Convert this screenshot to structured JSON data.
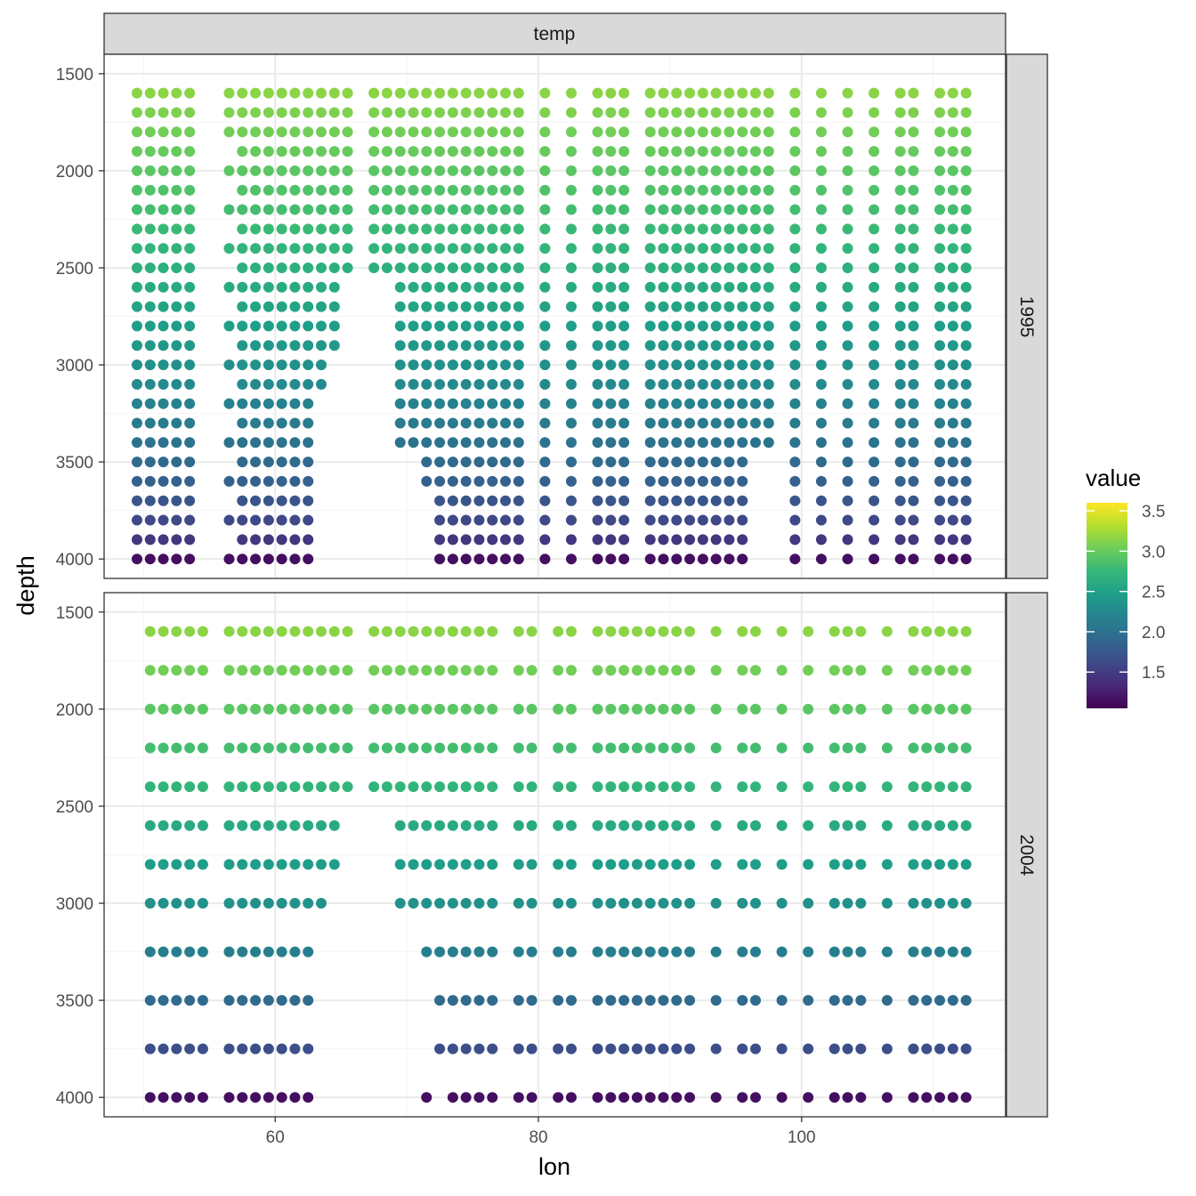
{
  "chart_data": {
    "type": "scatter",
    "facet_top_label": "temp",
    "facets": [
      {
        "label": "1995",
        "lons": [
          49.5,
          50.5,
          51.5,
          52.5,
          53.5,
          56.5,
          57.5,
          58.5,
          59.5,
          60.5,
          61.5,
          62.5,
          63.5,
          64.5,
          65.5,
          67.5,
          68.5,
          69.5,
          70.5,
          71.5,
          72.5,
          73.5,
          74.5,
          75.5,
          76.5,
          77.5,
          78.5,
          80.5,
          82.5,
          84.5,
          85.5,
          86.5,
          88.5,
          89.5,
          90.5,
          91.5,
          92.5,
          93.5,
          94.5,
          95.5,
          96.5,
          97.5,
          99.5,
          101.5,
          103.5,
          105.5,
          107.5,
          108.5,
          110.5,
          111.5,
          112.5
        ],
        "depths": [
          1600,
          1700,
          1800,
          1900,
          2000,
          2100,
          2200,
          2300,
          2400,
          2500,
          2600,
          2700,
          2800,
          2900,
          3000,
          3100,
          3200,
          3300,
          3400,
          3500,
          3600,
          3700,
          3800,
          3900,
          4000
        ],
        "empty_cells": [
          [
            56.5,
            1900
          ],
          [
            56.5,
            2100
          ],
          [
            56.5,
            2300
          ],
          [
            56.5,
            2500
          ],
          [
            56.5,
            2700
          ],
          [
            56.5,
            2900
          ],
          [
            56.5,
            3100
          ],
          [
            56.5,
            3300
          ],
          [
            56.5,
            3500
          ],
          [
            56.5,
            3700
          ],
          [
            56.5,
            3900
          ],
          [
            63.5,
            3200
          ],
          [
            63.5,
            3300
          ],
          [
            63.5,
            3400
          ],
          [
            63.5,
            3500
          ],
          [
            63.5,
            3600
          ],
          [
            63.5,
            3700
          ],
          [
            63.5,
            3800
          ],
          [
            63.5,
            3900
          ],
          [
            63.5,
            4000
          ],
          [
            64.5,
            3000
          ],
          [
            64.5,
            3100
          ],
          [
            64.5,
            3200
          ],
          [
            64.5,
            3300
          ],
          [
            64.5,
            3400
          ],
          [
            64.5,
            3500
          ],
          [
            64.5,
            3600
          ],
          [
            64.5,
            3700
          ],
          [
            64.5,
            3800
          ],
          [
            64.5,
            3900
          ],
          [
            64.5,
            4000
          ],
          [
            65.5,
            2600
          ],
          [
            65.5,
            2700
          ],
          [
            65.5,
            2800
          ],
          [
            65.5,
            2900
          ],
          [
            65.5,
            3000
          ],
          [
            65.5,
            3100
          ],
          [
            65.5,
            3200
          ],
          [
            65.5,
            3300
          ],
          [
            65.5,
            3400
          ],
          [
            65.5,
            3500
          ],
          [
            65.5,
            3600
          ],
          [
            65.5,
            3700
          ],
          [
            65.5,
            3800
          ],
          [
            65.5,
            3900
          ],
          [
            65.5,
            4000
          ],
          [
            67.5,
            2600
          ],
          [
            67.5,
            2700
          ],
          [
            67.5,
            2800
          ],
          [
            67.5,
            2900
          ],
          [
            67.5,
            3000
          ],
          [
            67.5,
            3100
          ],
          [
            67.5,
            3200
          ],
          [
            67.5,
            3300
          ],
          [
            67.5,
            3400
          ],
          [
            67.5,
            3500
          ],
          [
            67.5,
            3600
          ],
          [
            67.5,
            3700
          ],
          [
            67.5,
            3800
          ],
          [
            67.5,
            3900
          ],
          [
            67.5,
            4000
          ],
          [
            68.5,
            2600
          ],
          [
            68.5,
            2700
          ],
          [
            68.5,
            2800
          ],
          [
            68.5,
            2900
          ],
          [
            68.5,
            3000
          ],
          [
            68.5,
            3100
          ],
          [
            68.5,
            3200
          ],
          [
            68.5,
            3300
          ],
          [
            68.5,
            3400
          ],
          [
            68.5,
            3500
          ],
          [
            68.5,
            3600
          ],
          [
            68.5,
            3700
          ],
          [
            68.5,
            3800
          ],
          [
            68.5,
            3900
          ],
          [
            68.5,
            4000
          ],
          [
            69.5,
            3500
          ],
          [
            69.5,
            3600
          ],
          [
            69.5,
            3700
          ],
          [
            69.5,
            3800
          ],
          [
            69.5,
            3900
          ],
          [
            69.5,
            4000
          ],
          [
            70.5,
            3500
          ],
          [
            70.5,
            3600
          ],
          [
            70.5,
            3700
          ],
          [
            70.5,
            3800
          ],
          [
            70.5,
            3900
          ],
          [
            70.5,
            4000
          ],
          [
            71.5,
            3700
          ],
          [
            71.5,
            3800
          ],
          [
            71.5,
            3900
          ],
          [
            71.5,
            4000
          ],
          [
            96.5,
            3500
          ],
          [
            96.5,
            3600
          ],
          [
            96.5,
            3700
          ],
          [
            96.5,
            3800
          ],
          [
            96.5,
            3900
          ],
          [
            96.5,
            4000
          ],
          [
            97.5,
            3500
          ],
          [
            97.5,
            3600
          ],
          [
            97.5,
            3700
          ],
          [
            97.5,
            3800
          ],
          [
            97.5,
            3900
          ],
          [
            97.5,
            4000
          ]
        ]
      },
      {
        "label": "2004",
        "lons": [
          50.5,
          51.5,
          52.5,
          53.5,
          54.5,
          56.5,
          57.5,
          58.5,
          59.5,
          60.5,
          61.5,
          62.5,
          63.5,
          64.5,
          65.5,
          67.5,
          68.5,
          69.5,
          70.5,
          71.5,
          72.5,
          73.5,
          74.5,
          75.5,
          76.5,
          78.5,
          79.5,
          81.5,
          82.5,
          84.5,
          85.5,
          86.5,
          87.5,
          88.5,
          89.5,
          90.5,
          91.5,
          93.5,
          95.5,
          96.5,
          98.5,
          100.5,
          102.5,
          103.5,
          104.5,
          106.5,
          108.5,
          109.5,
          110.5,
          111.5,
          112.5
        ],
        "depths": [
          1600,
          1800,
          2000,
          2200,
          2400,
          2600,
          2800,
          3000,
          3250,
          3500,
          3750,
          4000
        ],
        "empty_cells": [
          [
            63.5,
            3250
          ],
          [
            63.5,
            3500
          ],
          [
            63.5,
            3750
          ],
          [
            63.5,
            4000
          ],
          [
            64.5,
            3000
          ],
          [
            64.5,
            3250
          ],
          [
            64.5,
            3500
          ],
          [
            64.5,
            3750
          ],
          [
            64.5,
            4000
          ],
          [
            65.5,
            2600
          ],
          [
            65.5,
            2800
          ],
          [
            65.5,
            3000
          ],
          [
            65.5,
            3250
          ],
          [
            65.5,
            3500
          ],
          [
            65.5,
            3750
          ],
          [
            65.5,
            4000
          ],
          [
            67.5,
            2600
          ],
          [
            67.5,
            2800
          ],
          [
            67.5,
            3000
          ],
          [
            67.5,
            3250
          ],
          [
            67.5,
            3500
          ],
          [
            67.5,
            3750
          ],
          [
            67.5,
            4000
          ],
          [
            68.5,
            2600
          ],
          [
            68.5,
            2800
          ],
          [
            68.5,
            3000
          ],
          [
            68.5,
            3250
          ],
          [
            68.5,
            3500
          ],
          [
            68.5,
            3750
          ],
          [
            68.5,
            4000
          ],
          [
            69.5,
            3250
          ],
          [
            69.5,
            3500
          ],
          [
            69.5,
            3750
          ],
          [
            69.5,
            4000
          ],
          [
            70.5,
            3250
          ],
          [
            70.5,
            3500
          ],
          [
            70.5,
            3750
          ],
          [
            70.5,
            4000
          ],
          [
            71.5,
            3500
          ],
          [
            71.5,
            3750
          ],
          [
            72.5,
            4000
          ]
        ]
      }
    ],
    "x": {
      "label": "lon",
      "lim": [
        47,
        115.5
      ],
      "breaks": [
        60,
        80,
        100
      ]
    },
    "y": {
      "label": "depth",
      "reversed": true,
      "lim": [
        1400,
        4100
      ],
      "breaks": [
        1500,
        2000,
        2500,
        3000,
        3500,
        4000
      ]
    },
    "color_scale": {
      "name": "viridis",
      "title": "value",
      "lim": [
        1.05,
        3.6
      ],
      "breaks": [
        "1.5",
        "2.0",
        "2.5",
        "3.0",
        "3.5"
      ]
    },
    "value_model": {
      "at_1600": 3.15,
      "at_4000": 1.15,
      "curve_exponent": 0.6
    },
    "viridis_stops": [
      "#440154",
      "#482878",
      "#3E4A89",
      "#31688E",
      "#26828E",
      "#1F9E89",
      "#35B779",
      "#6DCD59",
      "#B4DE2C",
      "#FDE725"
    ],
    "colors": {
      "panel_border": "#333333",
      "strip_fill": "#d9d9d9",
      "grid_major": "#ebebeb",
      "grid_minor": "#f4f4f4",
      "tick_text": "#4d4d4d"
    }
  }
}
